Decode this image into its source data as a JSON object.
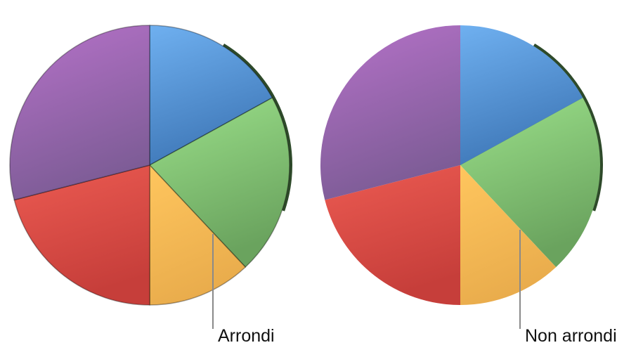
{
  "pies": [
    {
      "label": "Arrondi",
      "style": "rounded"
    },
    {
      "label": "Non arrondi",
      "style": "flat"
    }
  ],
  "slices": [
    {
      "name": "blue",
      "percent": 17,
      "color_light": "#6fb0f0",
      "color_dark": "#3f78b8"
    },
    {
      "name": "green",
      "percent": 21,
      "color_light": "#9be08a",
      "color_dark": "#6aa35e"
    },
    {
      "name": "orange",
      "percent": 12,
      "color_light": "#ffc65e",
      "color_dark": "#e9ac4c"
    },
    {
      "name": "red",
      "percent": 21,
      "color_light": "#ec5b52",
      "color_dark": "#c63e3a"
    },
    {
      "name": "purple",
      "percent": 29,
      "color_light": "#b672c9",
      "color_dark": "#7d5c96"
    }
  ],
  "leader_color": "#8a8a8a"
}
